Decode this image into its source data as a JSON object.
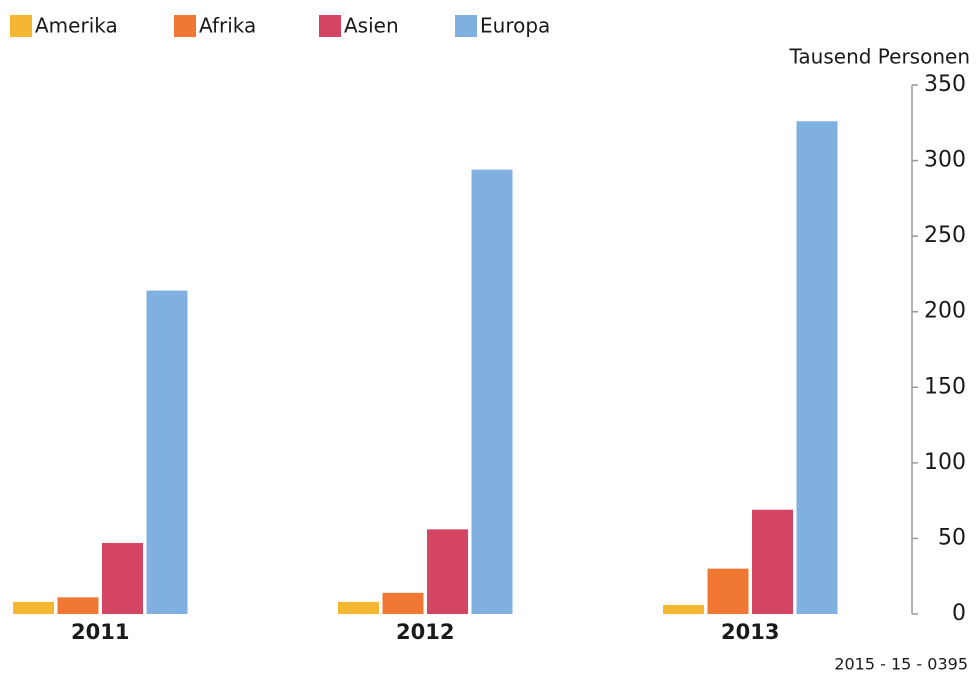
{
  "chart_data": {
    "type": "bar",
    "y_label": "Tausend Personen",
    "note": "2015 - 15 - 0395",
    "categories": [
      "2011",
      "2012",
      "2013"
    ],
    "series": [
      {
        "name": "Amerika",
        "color": "#f5b731",
        "values": [
          8,
          8,
          6
        ]
      },
      {
        "name": "Afrika",
        "color": "#f07832",
        "values": [
          11,
          14,
          30
        ]
      },
      {
        "name": "Asien",
        "color": "#d44463",
        "values": [
          47,
          56,
          69
        ]
      },
      {
        "name": "Europa",
        "color": "#80b0e0",
        "values": [
          214,
          294,
          326
        ]
      }
    ],
    "ylim": [
      0,
      350
    ],
    "yticks": [
      0,
      50,
      100,
      150,
      200,
      250,
      300,
      350
    ],
    "grid": false
  }
}
